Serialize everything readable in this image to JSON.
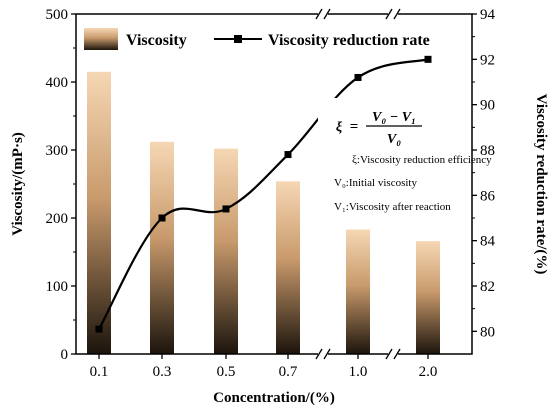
{
  "chart_data": {
    "type": "bar",
    "categories": [
      "0.1",
      "0.3",
      "0.5",
      "0.7",
      "1.0",
      "2.0"
    ],
    "xlabel": "Concentration/(%)",
    "ylabel": "Viscosity/(mP·s)",
    "y2label": "Viscosity reduction rate/(%)",
    "ylim": [
      0,
      500
    ],
    "y2lim": [
      79,
      94
    ],
    "yticks": [
      "0",
      "100",
      "200",
      "300",
      "400",
      "500"
    ],
    "y2ticks": [
      "80",
      "82",
      "84",
      "86",
      "88",
      "90",
      "92",
      "94"
    ],
    "axis_breaks": "after 0.7 and after 1.0",
    "legend_placement": "top",
    "series": [
      {
        "name": "Viscosity",
        "kind": "bar",
        "axis": "left",
        "values": [
          415,
          312,
          302,
          254,
          183,
          166
        ]
      },
      {
        "name": "Viscosity reduction rate",
        "kind": "line",
        "axis": "right",
        "marker": "square",
        "values": [
          80.1,
          85.0,
          85.4,
          87.8,
          91.2,
          92.0
        ]
      }
    ],
    "colors": {
      "bar_top": "#f6d7b4",
      "bar_mid": "#c89a6c",
      "bar_bottom": "#1c140c",
      "line": "#000000"
    }
  },
  "annotation": {
    "formula_lhs": "ξ",
    "formula_eq": "=",
    "formula_num": "V₀ − V₁",
    "formula_den": "V₀",
    "line1": "ξ:Viscosity reduction efficiency",
    "line2": "V₀:Initial viscosity",
    "line3": "V₁:Viscosity after reaction"
  }
}
